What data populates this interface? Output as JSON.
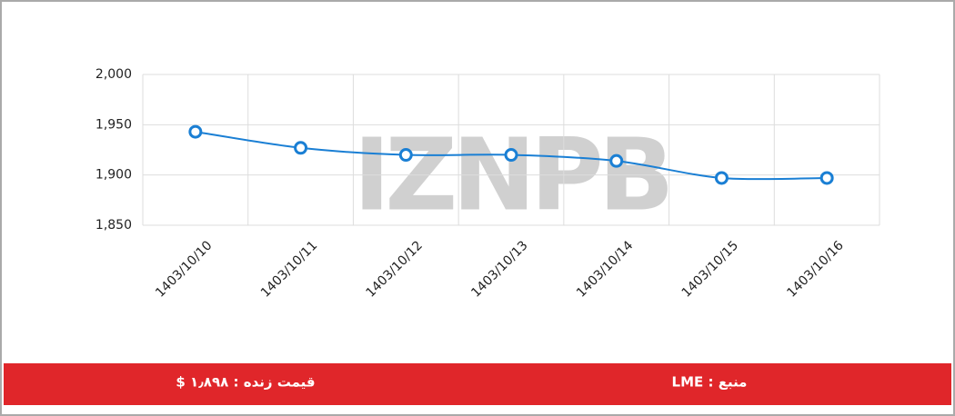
{
  "chart_data": {
    "type": "line",
    "categories": [
      "1403/10/10",
      "1403/10/11",
      "1403/10/12",
      "1403/10/13",
      "1403/10/14",
      "1403/10/15",
      "1403/10/16"
    ],
    "values": [
      1943,
      1927,
      1920,
      1920,
      1914,
      1897,
      1897
    ],
    "color": "#1a7fd4",
    "ylim": [
      1850,
      2000
    ],
    "yticks": [
      {
        "value": 1850,
        "label": "1,850"
      },
      {
        "value": 1900,
        "label": "1,900"
      },
      {
        "value": 1950,
        "label": "1,950"
      },
      {
        "value": 2000,
        "label": "2,000"
      }
    ],
    "grid": true,
    "watermark": "IZNPB"
  },
  "footer": {
    "live_price": "قیمت زنده : ۱٫۸۹۸ $",
    "source": "منبع : LME"
  }
}
